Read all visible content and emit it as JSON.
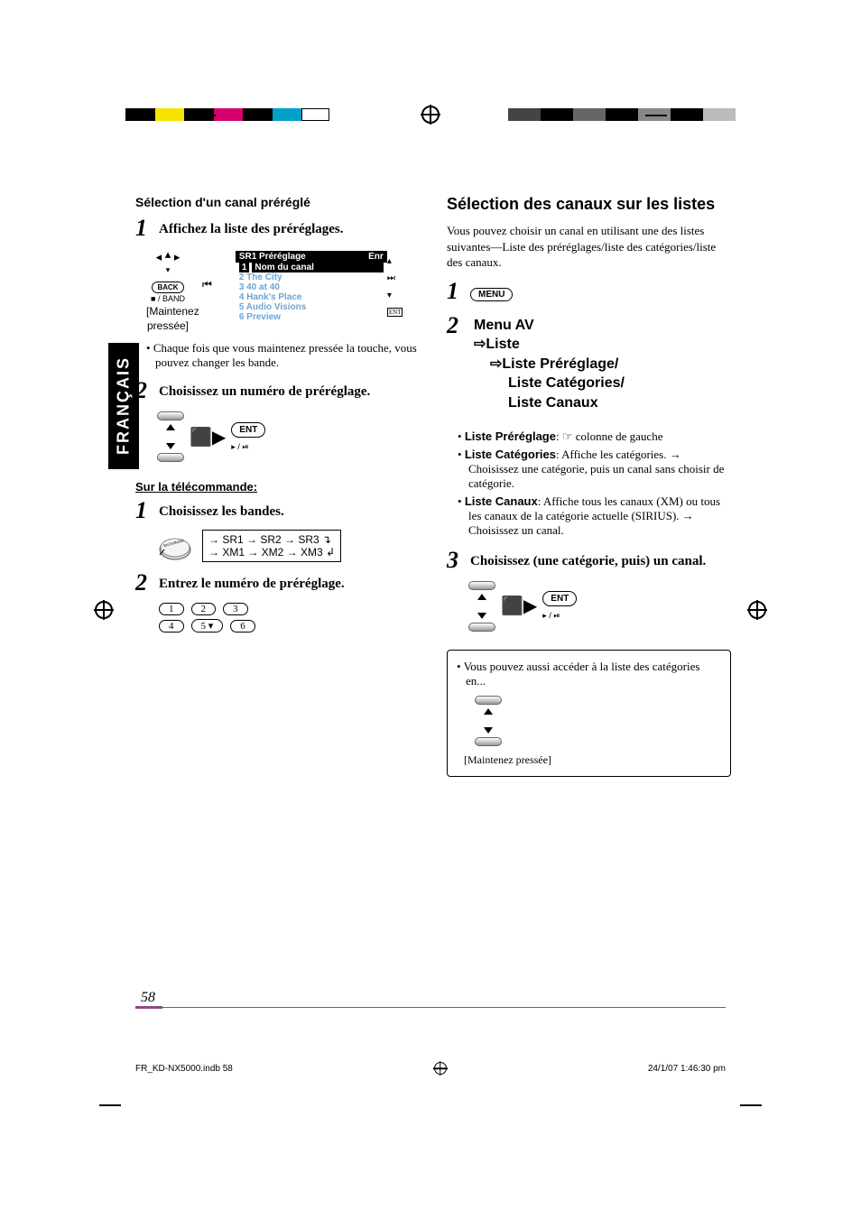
{
  "lang_tab": "FRANÇAIS",
  "page_number": "58",
  "footer_file": "FR_KD-NX5000.indb   58",
  "footer_date": "24/1/07   1:46:30 pm",
  "left": {
    "section_title": "Sélection d'un canal préréglé",
    "step1": {
      "text": "Affichez la liste des préréglages.",
      "dpad_back": "BACK",
      "dpad_band": "■ / BAND",
      "hold_caption_1": "[Maintenez",
      "hold_caption_2": "pressée]",
      "display_title_left": "SR1 Préréglage",
      "display_title_right": "Enr",
      "rows": [
        {
          "n": "1",
          "t": "Nom du canal",
          "sel": true
        },
        {
          "n": "2",
          "t": "The City",
          "sel": false
        },
        {
          "n": "3",
          "t": "40 at 40",
          "sel": false
        },
        {
          "n": "4",
          "t": "Hank's Place",
          "sel": false
        },
        {
          "n": "5",
          "t": "Audio Visions",
          "sel": false
        },
        {
          "n": "6",
          "t": "Preview",
          "sel": false
        }
      ],
      "note": "Chaque fois que vous maintenez pressée la touche, vous pouvez changer les bande."
    },
    "step2": {
      "text": "Choisissez un numéro de préréglage.",
      "ent": "ENT",
      "ent_sub": "▸ / ⏯"
    },
    "remote_title": "Sur la télécommande:",
    "r_step1": {
      "text": "Choisissez les bandes.",
      "btn_label": "BACK/BAND",
      "flows": [
        "→ SR1 → SR2 → SR3 ↴",
        "→ XM1 → XM2 → XM3 ↲"
      ]
    },
    "r_step2": {
      "text": "Entrez le numéro de préréglage.",
      "nums": [
        "1",
        "2",
        "3",
        "4",
        "5 ▾",
        "6"
      ]
    }
  },
  "right": {
    "heading": "Sélection des canaux sur les listes",
    "intro": "Vous pouvez choisir un canal en utilisant une des listes suivantes—Liste des préréglages/liste des catégories/liste des canaux.",
    "step1_btn": "MENU",
    "step2_path": {
      "l1": "Menu AV",
      "l2": "⇨Liste",
      "l3": "⇨Liste Préréglage/",
      "l4": "Liste Catégories/",
      "l5": "Liste Canaux"
    },
    "bullets": [
      {
        "b": "Liste Préréglage",
        "t": ": ☞ colonne de gauche"
      },
      {
        "b": "Liste Catégories",
        "t": ": Affiche les catégories. → Choisissez une catégorie, puis un canal sans choisir de catégorie."
      },
      {
        "b": "Liste Canaux",
        "t": ": Affiche tous les canaux (XM) ou tous les canaux de la catégorie actuelle (SIRIUS). → Choisissez un canal."
      }
    ],
    "step3": {
      "text": "Choisissez (une catégorie, puis) un canal.",
      "ent": "ENT",
      "ent_sub": "▸ / ⏯"
    },
    "infobox": {
      "text": "Vous pouvez aussi accéder à la liste des catégories en...",
      "hold": "[Maintenez pressée]"
    }
  }
}
